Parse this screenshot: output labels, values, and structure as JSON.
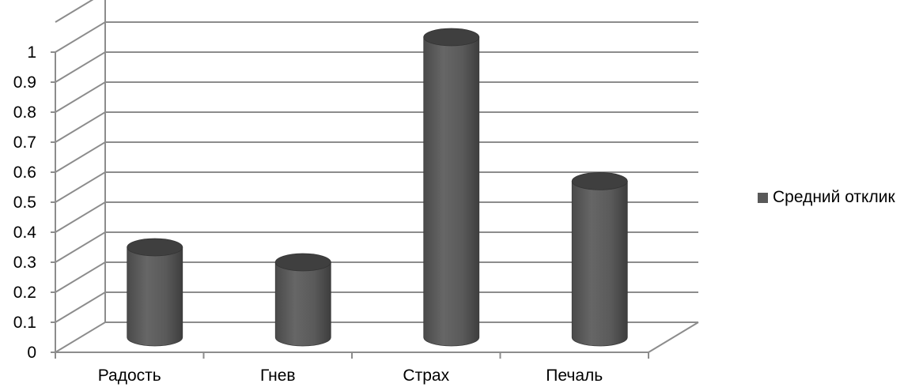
{
  "chart_data": {
    "type": "bar",
    "style": "3d-cylinder",
    "categories": [
      "Радость",
      "Гнев",
      "Страх",
      "Печаль"
    ],
    "series": [
      {
        "name": "Средний отклик",
        "values": [
          0.3,
          0.25,
          1.0,
          0.52
        ],
        "color": "#595959"
      }
    ],
    "yticks": [
      "0",
      "0.1",
      "0.2",
      "0.3",
      "0.4",
      "0.5",
      "0.6",
      "0.7",
      "0.8",
      "0.9",
      "1"
    ],
    "ylim": [
      0,
      1.1
    ],
    "grid": true,
    "legend": "right",
    "colors": {
      "bar": "#595959",
      "bar_top": "#3f3f3f",
      "grid": "#8c8c8c",
      "axis": "#8c8c8c"
    }
  }
}
